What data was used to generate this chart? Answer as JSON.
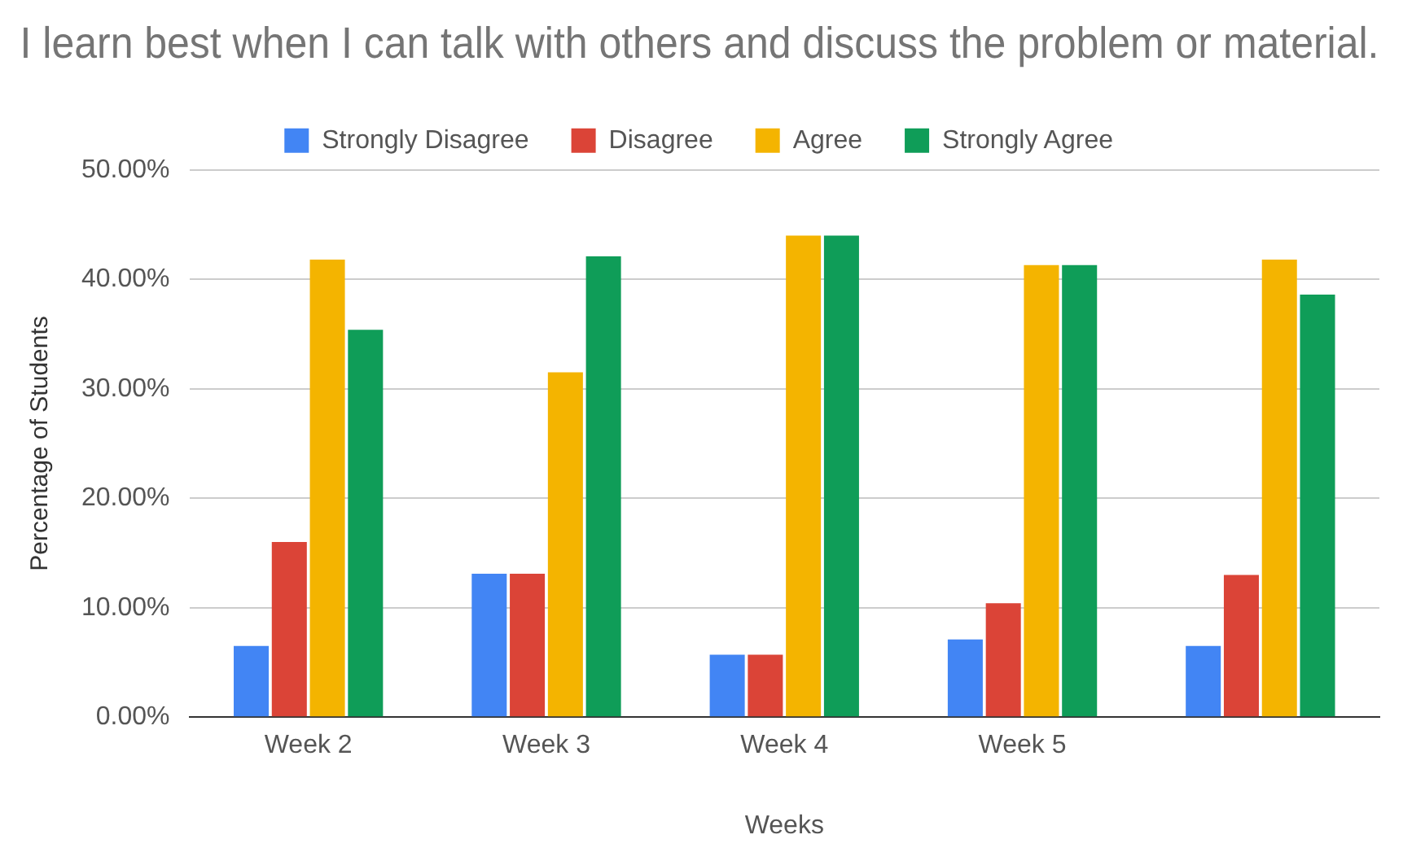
{
  "chart_data": {
    "type": "bar",
    "title": "I learn best when I can talk with others and discuss the problem or material.",
    "xlabel": "Weeks",
    "ylabel": "Percentage of Students",
    "categories": [
      "Week 2",
      "Week 3",
      "Week 4",
      "Week 5",
      null
    ],
    "series": [
      {
        "name": "Strongly Disagree",
        "color": "#4285f4",
        "values": [
          6.5,
          13.1,
          5.7,
          7.1,
          6.5
        ]
      },
      {
        "name": "Disagree",
        "color": "#db4437",
        "values": [
          16.0,
          13.1,
          5.7,
          10.4,
          13.0
        ]
      },
      {
        "name": "Agree",
        "color": "#f4b400",
        "values": [
          41.8,
          31.5,
          44.0,
          41.3,
          41.8
        ]
      },
      {
        "name": "Strongly Agree",
        "color": "#0f9d58",
        "values": [
          35.4,
          42.1,
          44.0,
          41.3,
          38.6
        ]
      }
    ],
    "ylim": [
      0,
      50
    ],
    "yticks": [
      {
        "value": 0,
        "label": "0.00%"
      },
      {
        "value": 10,
        "label": "10.00%"
      },
      {
        "value": 20,
        "label": "20.00%"
      },
      {
        "value": 30,
        "label": "30.00%"
      },
      {
        "value": 40,
        "label": "40.00%"
      },
      {
        "value": 50,
        "label": "50.00%"
      }
    ],
    "grid": "y",
    "legend": "top"
  }
}
